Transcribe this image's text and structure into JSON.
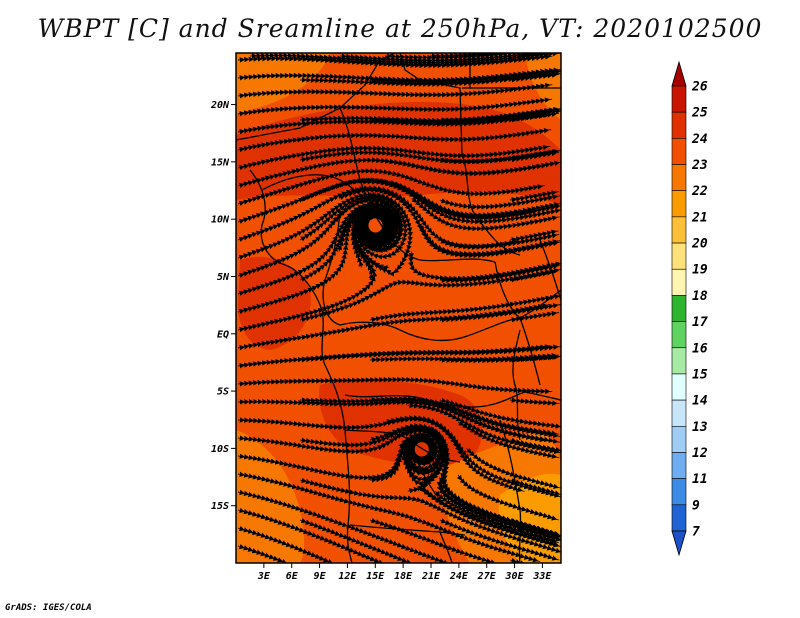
{
  "title": "WBPT [C] and Sreamline at 250hPa, VT: 2020102500",
  "credit": "GrADS: IGES/COLA",
  "lat_ticks": [
    "20N",
    "15N",
    "10N",
    "5N",
    "EQ",
    "5S",
    "10S",
    "15S"
  ],
  "lon_ticks": [
    "3E",
    "6E",
    "9E",
    "12E",
    "15E",
    "18E",
    "21E",
    "24E",
    "27E",
    "30E",
    "33E"
  ],
  "colorbar": {
    "labels": [
      "26",
      "25",
      "24",
      "23",
      "22",
      "21",
      "20",
      "19",
      "18",
      "17",
      "16",
      "15",
      "14",
      "13",
      "12",
      "11",
      "9",
      "7"
    ],
    "colors": [
      "#a50000",
      "#c81400",
      "#e03200",
      "#f05000",
      "#f77800",
      "#fa9c00",
      "#fcc038",
      "#fde27c",
      "#fef6b0",
      "#2db52d",
      "#5fd35f",
      "#a6eaa6",
      "#e1ffff",
      "#c8e6fa",
      "#a0cdf5",
      "#6eadf0",
      "#3c8ce6",
      "#1f64d2",
      "#1e50c8"
    ]
  },
  "map": {
    "lon_range": [
      0,
      35
    ],
    "lat_range": [
      -20,
      24.5
    ],
    "fill_base": "#f05000",
    "fill_warm": "#e03200",
    "fill_cool": "#f77800",
    "fill_cooler": "#fa9c00"
  }
}
